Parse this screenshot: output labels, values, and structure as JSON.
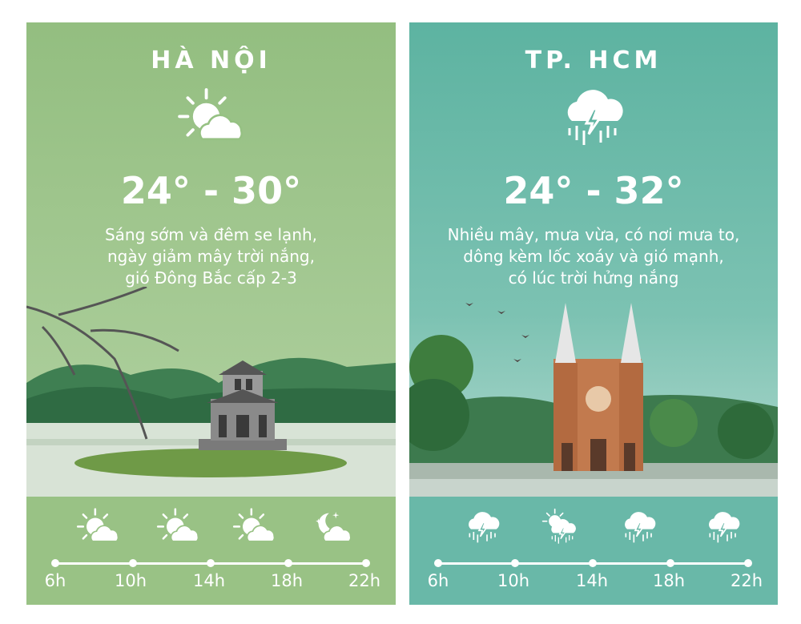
{
  "panels": [
    {
      "city": "HÀ NỘI",
      "icon": "sun-cloud-icon",
      "temp_low": "24°",
      "temp_high": "30°",
      "temp": "24° - 30°",
      "description": [
        "Sáng sớm và đêm se lạnh,",
        "ngày giảm mây trời nắng,",
        "gió Đông Bắc cấp 2-3"
      ],
      "bg_color": "#96c183",
      "forecast": [
        {
          "hour": "6h",
          "icon": "sun-cloud-icon"
        },
        {
          "hour": "10h",
          "icon": "sun-cloud-icon"
        },
        {
          "hour": "14h",
          "icon": "sun-cloud-icon"
        },
        {
          "hour": "18h",
          "icon": "moon-cloud-icon"
        },
        {
          "hour": "22h"
        }
      ]
    },
    {
      "city": "TP. HCM",
      "icon": "thunderstorm-rain-icon",
      "temp_low": "24°",
      "temp_high": "32°",
      "temp": "24° - 32°",
      "description": [
        "Nhiều mây, mưa vừa, có nơi mưa to,",
        "dông kèm lốc xoáy và gió mạnh,",
        "có lúc trời hửng nắng"
      ],
      "bg_color": "#5fb4a2",
      "forecast": [
        {
          "hour": "6h",
          "icon": "thunderstorm-rain-icon"
        },
        {
          "hour": "10h",
          "icon": "sun-thunderstorm-icon"
        },
        {
          "hour": "14h",
          "icon": "thunderstorm-rain-icon"
        },
        {
          "hour": "18h",
          "icon": "thunderstorm-rain-icon"
        },
        {
          "hour": "22h"
        }
      ]
    }
  ]
}
